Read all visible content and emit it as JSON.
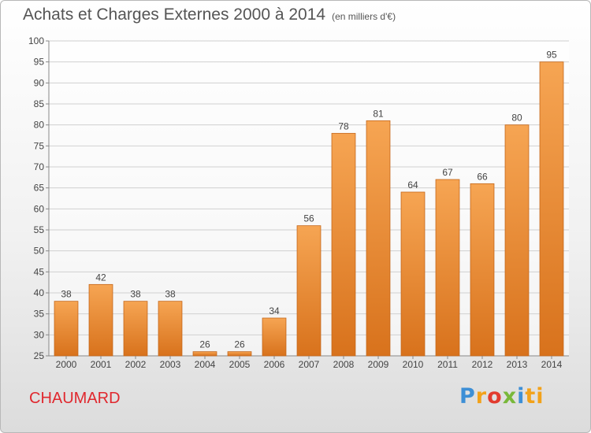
{
  "header": {
    "title": "Achats et Charges Externes 2000 à 2014",
    "subtitle": "(en milliers d'€)"
  },
  "footer": {
    "commune": "CHAUMARD",
    "brand_letters": [
      "P",
      "r",
      "o",
      "x",
      "i",
      "ti"
    ]
  },
  "colors": {
    "bar_top": "#f6a553",
    "bar_bottom": "#d8721c",
    "bar_edge": "#c4661a",
    "grid": "#d0d0d0",
    "commune": "#e0282e"
  },
  "chart_data": {
    "type": "bar",
    "title": "Achats et Charges Externes 2000 à 2014",
    "subtitle": "(en milliers d'€)",
    "categories": [
      "2000",
      "2001",
      "2002",
      "2003",
      "2004",
      "2005",
      "2006",
      "2007",
      "2008",
      "2009",
      "2010",
      "2011",
      "2012",
      "2013",
      "2014"
    ],
    "values": [
      38,
      42,
      38,
      38,
      26,
      26,
      34,
      56,
      78,
      81,
      64,
      67,
      66,
      80,
      95
    ],
    "ylim": [
      25,
      100
    ],
    "yticks": [
      25,
      30,
      35,
      40,
      45,
      50,
      55,
      60,
      65,
      70,
      75,
      80,
      85,
      90,
      95,
      100
    ],
    "grid": true,
    "xlabel": "",
    "ylabel": ""
  }
}
